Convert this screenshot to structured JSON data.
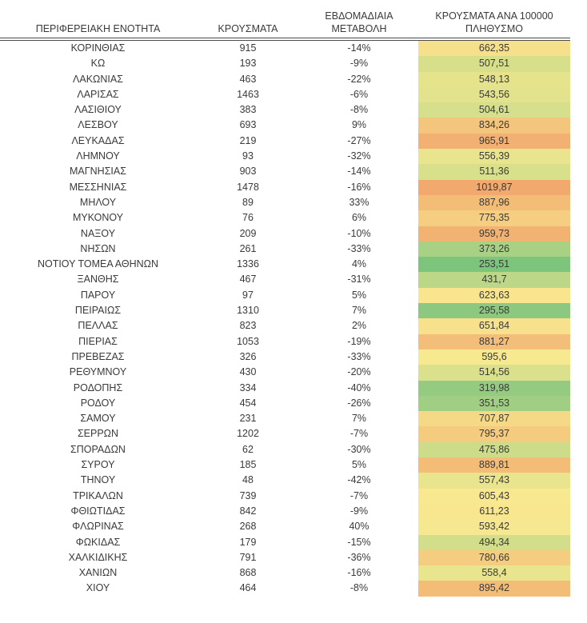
{
  "page": {
    "background": "#ffffff",
    "text_color": "#3a3a3a",
    "header_rule_color": "#4a4a4a"
  },
  "chart_data": {
    "type": "table",
    "title": "",
    "legend_note": "per-100k column uses green-yellow-orange color scale",
    "color_scale": {
      "low_color": "#7DC47D",
      "mid_color": "#F8E990",
      "high_color": "#F1A96D",
      "low_value": 253.51,
      "high_value": 1019.87
    },
    "columns": [
      {
        "id": "region",
        "header_lines": [
          "ΠΕΡΙΦΕΡΕΙΑΚΗ ΕΝΟΤΗΤΑ"
        ]
      },
      {
        "id": "cases",
        "header_lines": [
          "ΚΡΟΥΣΜΑΤΑ"
        ]
      },
      {
        "id": "weekly_change",
        "header_lines": [
          "ΕΒΔΟΜΑΔΙΑΙΑ",
          "ΜΕΤΑΒΟΛΗ"
        ]
      },
      {
        "id": "per_100k",
        "header_lines": [
          "ΚΡΟΥΣΜΑΤΑ ΑΝΑ 100000",
          "ΠΛΗΘΥΣΜΟ"
        ]
      }
    ],
    "rows": [
      {
        "region": "ΚΟΡΙΝΘΙΑΣ",
        "cases": "915",
        "weekly_change": "-14%",
        "per_100k": "662,35",
        "cell_color": "#F7E08B"
      },
      {
        "region": "ΚΩ",
        "cases": "193",
        "weekly_change": "-9%",
        "per_100k": "507,51",
        "cell_color": "#D7DF8B"
      },
      {
        "region": "ΛΑΚΩΝΙΑΣ",
        "cases": "463",
        "weekly_change": "-22%",
        "per_100k": "548,13",
        "cell_color": "#E6E38D"
      },
      {
        "region": "ΛΑΡΙΣΑΣ",
        "cases": "1463",
        "weekly_change": "-6%",
        "per_100k": "543,56",
        "cell_color": "#E4E38D"
      },
      {
        "region": "ΛΑΣΙΘΙΟΥ",
        "cases": "383",
        "weekly_change": "-8%",
        "per_100k": "504,61",
        "cell_color": "#D6DF8B"
      },
      {
        "region": "ΛΕΣΒΟΥ",
        "cases": "693",
        "weekly_change": "9%",
        "per_100k": "834,26",
        "cell_color": "#F4C57C"
      },
      {
        "region": "ΛΕΥΚΑΔΑΣ",
        "cases": "219",
        "weekly_change": "-27%",
        "per_100k": "965,91",
        "cell_color": "#F2B172"
      },
      {
        "region": "ΛΗΜΝΟΥ",
        "cases": "93",
        "weekly_change": "-32%",
        "per_100k": "556,39",
        "cell_color": "#E9E48E"
      },
      {
        "region": "ΜΑΓΝΗΣΙΑΣ",
        "cases": "903",
        "weekly_change": "-14%",
        "per_100k": "511,36",
        "cell_color": "#D9E08B"
      },
      {
        "region": "ΜΕΣΣΗΝΙΑΣ",
        "cases": "1478",
        "weekly_change": "-16%",
        "per_100k": "1019,87",
        "cell_color": "#F1A96D"
      },
      {
        "region": "ΜΗΛΟΥ",
        "cases": "89",
        "weekly_change": "33%",
        "per_100k": "887,96",
        "cell_color": "#F3BD78"
      },
      {
        "region": "ΜΥΚΟΝΟΥ",
        "cases": "76",
        "weekly_change": "6%",
        "per_100k": "775,35",
        "cell_color": "#F5CE81"
      },
      {
        "region": "ΝΑΞΟΥ",
        "cases": "209",
        "weekly_change": "-10%",
        "per_100k": "959,73",
        "cell_color": "#F2B272"
      },
      {
        "region": "ΝΗΣΩΝ",
        "cases": "261",
        "weekly_change": "-33%",
        "per_100k": "373,26",
        "cell_color": "#A8D184"
      },
      {
        "region": "ΝΟΤΙΟΥ ΤΟΜΕΑ ΑΘΗΝΩΝ",
        "cases": "1336",
        "weekly_change": "4%",
        "per_100k": "253,51",
        "cell_color": "#7DC47D"
      },
      {
        "region": "ΞΑΝΘΗΣ",
        "cases": "467",
        "weekly_change": "-31%",
        "per_100k": "431,7",
        "cell_color": "#BCD787"
      },
      {
        "region": "ΠΑΡΟΥ",
        "cases": "97",
        "weekly_change": "5%",
        "per_100k": "623,63",
        "cell_color": "#F8E58E"
      },
      {
        "region": "ΠΕΙΡΑΙΩΣ",
        "cases": "1310",
        "weekly_change": "7%",
        "per_100k": "295,58",
        "cell_color": "#8CC87F"
      },
      {
        "region": "ΠΕΛΛΑΣ",
        "cases": "823",
        "weekly_change": "2%",
        "per_100k": "651,84",
        "cell_color": "#F7E18C"
      },
      {
        "region": "ΠΙΕΡΙΑΣ",
        "cases": "1053",
        "weekly_change": "-19%",
        "per_100k": "881,27",
        "cell_color": "#F3BE79"
      },
      {
        "region": "ΠΡΕΒΕΖΑΣ",
        "cases": "326",
        "weekly_change": "-33%",
        "per_100k": "595,6",
        "cell_color": "#F6E990"
      },
      {
        "region": "ΡΕΘΥΜΝΟΥ",
        "cases": "430",
        "weekly_change": "-20%",
        "per_100k": "514,56",
        "cell_color": "#DAE08B"
      },
      {
        "region": "ΡΟΔΟΠΗΣ",
        "cases": "334",
        "weekly_change": "-40%",
        "per_100k": "319,98",
        "cell_color": "#95CB81"
      },
      {
        "region": "ΡΟΔΟΥ",
        "cases": "454",
        "weekly_change": "-26%",
        "per_100k": "351,53",
        "cell_color": "#A0CE82"
      },
      {
        "region": "ΣΑΜΟΥ",
        "cases": "231",
        "weekly_change": "7%",
        "per_100k": "707,87",
        "cell_color": "#F6D987"
      },
      {
        "region": "ΣΕΡΡΩΝ",
        "cases": "1202",
        "weekly_change": "-7%",
        "per_100k": "795,37",
        "cell_color": "#F5CB80"
      },
      {
        "region": "ΣΠΟΡΑΔΩΝ",
        "cases": "62",
        "weekly_change": "-30%",
        "per_100k": "475,86",
        "cell_color": "#CCDC89"
      },
      {
        "region": "ΣΥΡΟΥ",
        "cases": "185",
        "weekly_change": "5%",
        "per_100k": "889,81",
        "cell_color": "#F3BD78"
      },
      {
        "region": "ΤΗΝΟΥ",
        "cases": "48",
        "weekly_change": "-42%",
        "per_100k": "557,43",
        "cell_color": "#E9E48E"
      },
      {
        "region": "ΤΡΙΚΑΛΩΝ",
        "cases": "739",
        "weekly_change": "-7%",
        "per_100k": "605,43",
        "cell_color": "#F8E890"
      },
      {
        "region": "ΦΘΙΩΤΙΔΑΣ",
        "cases": "842",
        "weekly_change": "-9%",
        "per_100k": "611,23",
        "cell_color": "#F8E78F"
      },
      {
        "region": "ΦΛΩΡΙΝΑΣ",
        "cases": "268",
        "weekly_change": "40%",
        "per_100k": "593,42",
        "cell_color": "#F6E890"
      },
      {
        "region": "ΦΩΚΙΔΑΣ",
        "cases": "179",
        "weekly_change": "-15%",
        "per_100k": "494,34",
        "cell_color": "#D2DE8A"
      },
      {
        "region": "ΧΑΛΚΙΔΙΚΗΣ",
        "cases": "791",
        "weekly_change": "-36%",
        "per_100k": "780,66",
        "cell_color": "#F5CD81"
      },
      {
        "region": "ΧΑΝΙΩΝ",
        "cases": "868",
        "weekly_change": "-16%",
        "per_100k": "558,4",
        "cell_color": "#E9E58E"
      },
      {
        "region": "ΧΙΟΥ",
        "cases": "464",
        "weekly_change": "-8%",
        "per_100k": "895,42",
        "cell_color": "#F3BC77"
      }
    ]
  }
}
